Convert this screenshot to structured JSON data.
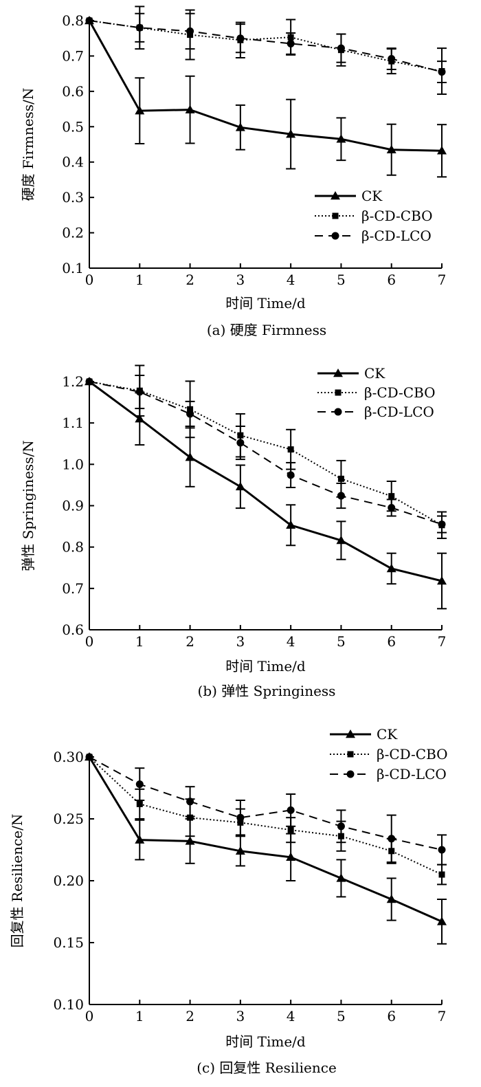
{
  "chart_data": [
    {
      "type": "line",
      "title": "",
      "caption": "(a) 硬度 Firmness",
      "xlabel": "时间 Time/d",
      "ylabel": "硬度 Firmness/N",
      "x": [
        0,
        1,
        2,
        3,
        4,
        5,
        6,
        7
      ],
      "xlim": [
        0,
        7
      ],
      "ylim": [
        0.1,
        0.8
      ],
      "yticks": [
        "0.1",
        "0.2",
        "0.3",
        "0.4",
        "0.5",
        "0.6",
        "0.7",
        "0.8"
      ],
      "xticks": [
        "0",
        "1",
        "2",
        "3",
        "4",
        "5",
        "6",
        "7"
      ],
      "legend_position": "bottom-right",
      "series": [
        {
          "name": "CK",
          "marker": "triangle",
          "line": "solid",
          "values": [
            0.8,
            0.545,
            0.548,
            0.498,
            0.479,
            0.465,
            0.435,
            0.432
          ],
          "errors": [
            0,
            0.093,
            0.095,
            0.063,
            0.098,
            0.06,
            0.072,
            0.074
          ]
        },
        {
          "name": "β-CD-CBO",
          "marker": "square",
          "line": "dotted",
          "values": [
            0.8,
            0.78,
            0.76,
            0.745,
            0.753,
            0.717,
            0.685,
            0.657
          ],
          "errors": [
            0,
            0.06,
            0.07,
            0.05,
            0.05,
            0.045,
            0.035,
            0.065
          ]
        },
        {
          "name": "β-CD-LCO",
          "marker": "circle",
          "line": "dashed",
          "values": [
            0.8,
            0.78,
            0.77,
            0.75,
            0.735,
            0.722,
            0.692,
            0.655
          ],
          "errors": [
            0,
            0.04,
            0.05,
            0.04,
            0.03,
            0.04,
            0.03,
            0.03
          ]
        }
      ]
    },
    {
      "type": "line",
      "title": "",
      "caption": "(b) 弹性 Springiness",
      "xlabel": "时间 Time/d",
      "ylabel": "弹性 Springiness/N",
      "x": [
        0,
        1,
        2,
        3,
        4,
        5,
        6,
        7
      ],
      "xlim": [
        0,
        7
      ],
      "ylim": [
        0.6,
        1.2
      ],
      "yticks": [
        "0.6",
        "0.7",
        "0.8",
        "0.9",
        "1.0",
        "1.1",
        "1.2"
      ],
      "xticks": [
        "0",
        "1",
        "2",
        "3",
        "4",
        "5",
        "6",
        "7"
      ],
      "legend_position": "top-right",
      "series": [
        {
          "name": "CK",
          "marker": "triangle",
          "line": "solid",
          "values": [
            1.2,
            1.11,
            1.017,
            0.946,
            0.853,
            0.816,
            0.748,
            0.718
          ],
          "errors": [
            0,
            0.063,
            0.071,
            0.052,
            0.049,
            0.046,
            0.037,
            0.067
          ]
        },
        {
          "name": "β-CD-CBO",
          "marker": "square",
          "line": "dotted",
          "values": [
            1.2,
            1.178,
            1.133,
            1.07,
            1.036,
            0.965,
            0.923,
            0.853
          ],
          "errors": [
            0,
            0.061,
            0.068,
            0.052,
            0.048,
            0.044,
            0.036,
            0.032
          ]
        },
        {
          "name": "β-CD-LCO",
          "marker": "circle",
          "line": "dashed",
          "values": [
            1.2,
            1.175,
            1.122,
            1.052,
            0.974,
            0.924,
            0.895,
            0.855
          ],
          "errors": [
            0,
            0.04,
            0.03,
            0.04,
            0.03,
            0.03,
            0.02,
            0.02
          ]
        }
      ]
    },
    {
      "type": "line",
      "title": "",
      "caption": "(c) 回复性 Resilience",
      "xlabel": "时间 Time/d",
      "ylabel": "回复性 Resilience/N",
      "x": [
        0,
        1,
        2,
        3,
        4,
        5,
        6,
        7
      ],
      "xlim": [
        0,
        7
      ],
      "ylim": [
        0.1,
        0.3
      ],
      "yticks": [
        "0.10",
        "0.15",
        "0.20",
        "0.25",
        "0.30"
      ],
      "xticks": [
        "0",
        "1",
        "2",
        "3",
        "4",
        "5",
        "6",
        "7"
      ],
      "legend_position": "top-right",
      "series": [
        {
          "name": "CK",
          "marker": "triangle",
          "line": "solid",
          "values": [
            0.3,
            0.233,
            0.232,
            0.224,
            0.219,
            0.202,
            0.185,
            0.167
          ],
          "errors": [
            0,
            0.016,
            0.018,
            0.012,
            0.019,
            0.015,
            0.017,
            0.018
          ]
        },
        {
          "name": "β-CD-CBO",
          "marker": "square",
          "line": "dotted",
          "values": [
            0.3,
            0.262,
            0.251,
            0.247,
            0.241,
            0.236,
            0.224,
            0.205
          ],
          "errors": [
            0,
            0.012,
            0.015,
            0.011,
            0.01,
            0.012,
            0.01,
            0.008
          ]
        },
        {
          "name": "β-CD-LCO",
          "marker": "circle",
          "line": "dashed",
          "values": [
            0.3,
            0.278,
            0.264,
            0.251,
            0.257,
            0.244,
            0.234,
            0.225
          ],
          "errors": [
            0,
            0.013,
            0.012,
            0.014,
            0.013,
            0.013,
            0.019,
            0.012
          ]
        }
      ]
    }
  ]
}
